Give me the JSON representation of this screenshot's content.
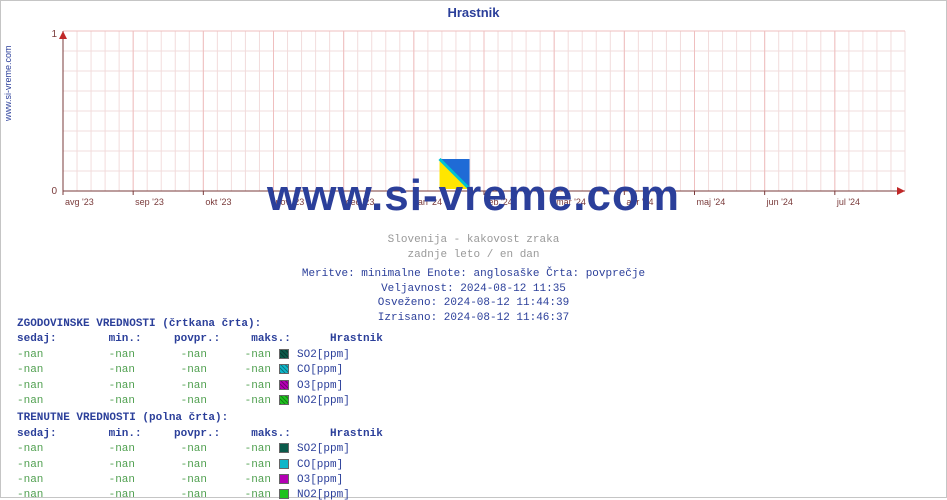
{
  "site_label": "www.si-vreme.com",
  "chart": {
    "title": "Hrastnik",
    "type": "line",
    "ylim": [
      0,
      1
    ],
    "yticks": [
      0,
      1
    ],
    "xticks": [
      "avg '23",
      "sep '23",
      "okt '23",
      "nov '23",
      "dec '23",
      "jan '24",
      "feb '24",
      "mar '24",
      "apr '24",
      "maj '24",
      "jun '24",
      "jul '24"
    ],
    "grid_color": "#efbfbf",
    "grid_minor_color": "#f2dcdc",
    "axis_color": "#7a3b3b",
    "background_color": "#ffffff",
    "arrow_color": "#c02828",
    "watermark": "www.si-vreme.com",
    "center_marker": {
      "left_color": "#ffe600",
      "right_color": "#1f6bd6",
      "sep_color": "#00c2d1"
    },
    "under_line1": "Slovenija - kakovost zraka",
    "under_line2": "zadnje leto / en dan"
  },
  "meta": {
    "line1": "Meritve: minimalne  Enote: anglosaške  Črta: povprečje",
    "line2": "Veljavnost: 2024-08-12 11:35",
    "line3": "Osveženo: 2024-08-12 11:44:39",
    "line4": "Izrisano: 2024-08-12 11:46:37"
  },
  "table": {
    "hist_title": "ZGODOVINSKE VREDNOSTI (črtkana črta):",
    "curr_title": "TRENUTNE VREDNOSTI (polna črta):",
    "headers": {
      "sedaj": "sedaj:",
      "min": "min.:",
      "povpr": "povpr.:",
      "maks": "maks.:",
      "loc": "Hrastnik"
    },
    "nan": "-nan",
    "hist_rows": [
      {
        "color": "#0a5a4a",
        "label": "SO2[ppm]"
      },
      {
        "color": "#0fb6c9",
        "label": "CO[ppm]"
      },
      {
        "color": "#b400b4",
        "label": "O3[ppm]"
      },
      {
        "color": "#1ec31e",
        "label": "NO2[ppm]"
      }
    ],
    "curr_rows": [
      {
        "color": "#0a5a4a",
        "label": "SO2[ppm]"
      },
      {
        "color": "#0fb6c9",
        "label": "CO[ppm]"
      },
      {
        "color": "#b400b4",
        "label": "O3[ppm]"
      },
      {
        "color": "#1ec31e",
        "label": "NO2[ppm]"
      }
    ]
  }
}
